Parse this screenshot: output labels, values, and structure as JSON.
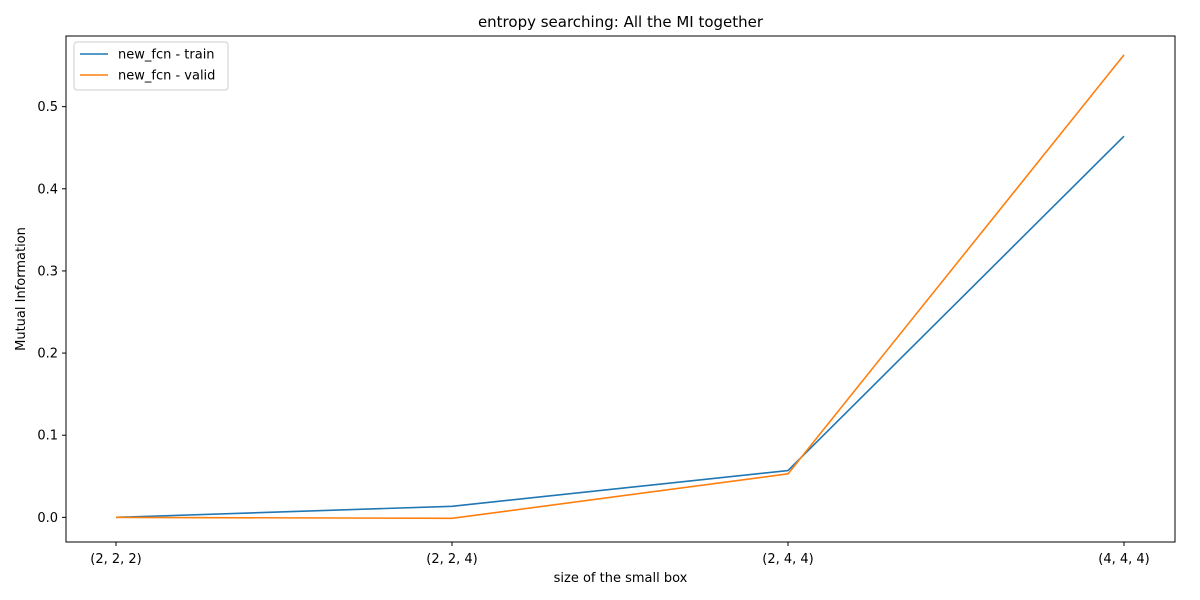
{
  "chart_data": {
    "type": "line",
    "title": "entropy searching: All the MI together",
    "xlabel": "size of the small box",
    "ylabel": "Mutual Information",
    "categories": [
      "(2, 2, 2)",
      "(2, 2, 4)",
      "(2, 4, 4)",
      "(4, 4, 4)"
    ],
    "series": [
      {
        "name": "new_fcn - train",
        "color": "#1f77b4",
        "values": [
          0.0,
          0.0135,
          0.057,
          0.464
        ]
      },
      {
        "name": "new_fcn - valid",
        "color": "#ff7f0e",
        "values": [
          0.0,
          -0.0012,
          0.053,
          0.563
        ]
      }
    ],
    "ylim": [
      -0.03,
      0.586
    ],
    "yticks": [
      0.0,
      0.1,
      0.2,
      0.3,
      0.4,
      0.5
    ],
    "ytick_labels": [
      "0.0",
      "0.1",
      "0.2",
      "0.3",
      "0.4",
      "0.5"
    ],
    "grid": false,
    "legend_position": "top-left"
  }
}
